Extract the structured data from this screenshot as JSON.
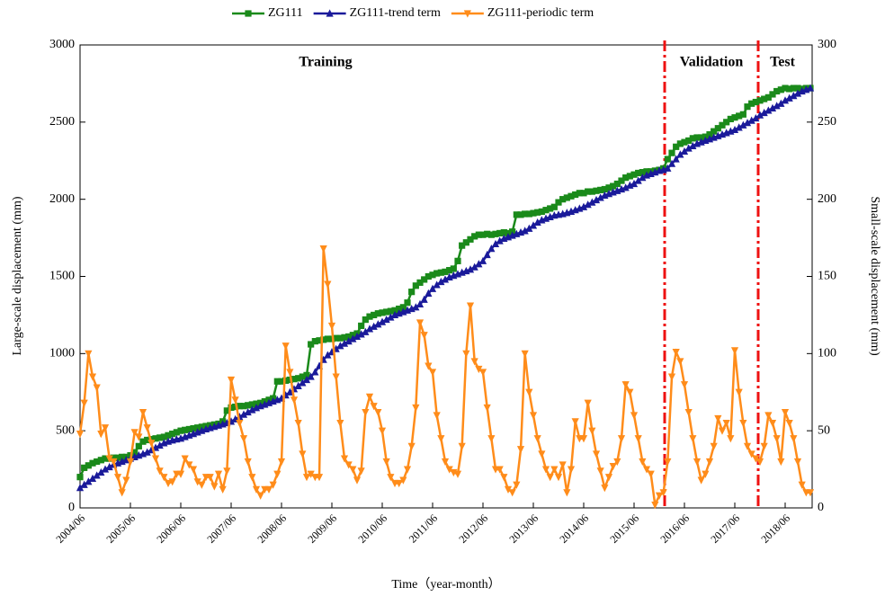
{
  "chart_data": {
    "type": "line",
    "x_label": "Time（year-month）",
    "y_label": "Large-scale displacement (mm)",
    "y2_label": "Small-scale displacement (mm)",
    "annotations": [
      "Training",
      "Validation",
      "Test"
    ],
    "categories": [
      "2004/06",
      null,
      null,
      null,
      null,
      null,
      null,
      null,
      null,
      null,
      null,
      null,
      "2005/06",
      null,
      null,
      null,
      null,
      null,
      null,
      null,
      null,
      null,
      null,
      null,
      "2006/06",
      null,
      null,
      null,
      null,
      null,
      null,
      null,
      null,
      null,
      null,
      null,
      "2007/06",
      null,
      null,
      null,
      null,
      null,
      null,
      null,
      null,
      null,
      null,
      null,
      "2008/06",
      null,
      null,
      null,
      null,
      null,
      null,
      null,
      null,
      null,
      null,
      null,
      "2009/06",
      null,
      null,
      null,
      null,
      null,
      null,
      null,
      null,
      null,
      null,
      null,
      "2010/06",
      null,
      null,
      null,
      null,
      null,
      null,
      null,
      null,
      null,
      null,
      null,
      "2011/06",
      null,
      null,
      null,
      null,
      null,
      null,
      null,
      null,
      null,
      null,
      null,
      "2012/06",
      null,
      null,
      null,
      null,
      null,
      null,
      null,
      null,
      null,
      null,
      null,
      "2013/06",
      null,
      null,
      null,
      null,
      null,
      null,
      null,
      null,
      null,
      null,
      null,
      "2014/06",
      null,
      null,
      null,
      null,
      null,
      null,
      null,
      null,
      null,
      null,
      null,
      "2015/06",
      null,
      null,
      null,
      null,
      null,
      null,
      null,
      null,
      null,
      null,
      null,
      "2016/06",
      null,
      null,
      null,
      null,
      null,
      null,
      null,
      null,
      null,
      null,
      null,
      "2017/06",
      null,
      null,
      null,
      null,
      null,
      null,
      null,
      null,
      null,
      null,
      null,
      "2018/06",
      null,
      null,
      null,
      null,
      null,
      null
    ],
    "series": [
      {
        "name": "ZG111",
        "color": "#1a8a1a",
        "marker": "square",
        "values": [
          200,
          260,
          275,
          290,
          300,
          310,
          320,
          320,
          325,
          325,
          330,
          330,
          340,
          360,
          400,
          430,
          440,
          445,
          450,
          455,
          460,
          470,
          480,
          490,
          500,
          505,
          510,
          515,
          520,
          525,
          530,
          535,
          540,
          545,
          560,
          630,
          650,
          655,
          660,
          660,
          665,
          670,
          675,
          680,
          690,
          700,
          710,
          820,
          820,
          825,
          830,
          835,
          840,
          850,
          860,
          1060,
          1080,
          1085,
          1090,
          1095,
          1095,
          1100,
          1100,
          1105,
          1110,
          1120,
          1130,
          1180,
          1220,
          1240,
          1250,
          1260,
          1265,
          1270,
          1275,
          1280,
          1290,
          1300,
          1330,
          1400,
          1440,
          1460,
          1480,
          1500,
          1510,
          1520,
          1525,
          1530,
          1540,
          1550,
          1600,
          1700,
          1720,
          1740,
          1760,
          1770,
          1770,
          1775,
          1770,
          1775,
          1780,
          1785,
          1780,
          1790,
          1900,
          1900,
          1905,
          1905,
          1910,
          1915,
          1920,
          1930,
          1940,
          1950,
          1980,
          2000,
          2010,
          2020,
          2030,
          2040,
          2040,
          2050,
          2050,
          2055,
          2060,
          2065,
          2075,
          2085,
          2100,
          2120,
          2140,
          2150,
          2160,
          2170,
          2175,
          2180,
          2180,
          2185,
          2190,
          2200,
          2260,
          2300,
          2340,
          2360,
          2370,
          2380,
          2395,
          2400,
          2400,
          2405,
          2420,
          2440,
          2460,
          2480,
          2500,
          2520,
          2530,
          2540,
          2550,
          2600,
          2620,
          2630,
          2640,
          2650,
          2660,
          2680,
          2700,
          2710,
          2720,
          2715,
          2720,
          2720,
          2715,
          2720,
          2720
        ]
      },
      {
        "name": "ZG111-trend term",
        "color": "#1a1a9a",
        "marker": "triangle-up",
        "values": [
          130,
          150,
          170,
          190,
          210,
          230,
          250,
          265,
          280,
          290,
          300,
          310,
          320,
          330,
          340,
          350,
          360,
          375,
          390,
          405,
          420,
          430,
          438,
          445,
          450,
          460,
          470,
          480,
          490,
          500,
          510,
          518,
          526,
          534,
          542,
          550,
          560,
          575,
          590,
          605,
          620,
          635,
          648,
          660,
          670,
          680,
          690,
          700,
          710,
          730,
          750,
          770,
          790,
          810,
          830,
          850,
          880,
          920,
          960,
          990,
          1010,
          1030,
          1050,
          1065,
          1080,
          1095,
          1110,
          1125,
          1140,
          1160,
          1175,
          1190,
          1205,
          1220,
          1235,
          1250,
          1260,
          1270,
          1280,
          1290,
          1300,
          1320,
          1350,
          1390,
          1420,
          1445,
          1465,
          1480,
          1495,
          1505,
          1515,
          1525,
          1535,
          1545,
          1560,
          1580,
          1600,
          1640,
          1680,
          1710,
          1730,
          1745,
          1755,
          1765,
          1775,
          1785,
          1795,
          1810,
          1830,
          1850,
          1865,
          1875,
          1885,
          1895,
          1900,
          1905,
          1912,
          1920,
          1930,
          1940,
          1950,
          1965,
          1980,
          1995,
          2010,
          2025,
          2035,
          2045,
          2055,
          2065,
          2075,
          2090,
          2100,
          2120,
          2140,
          2155,
          2165,
          2175,
          2185,
          2190,
          2200,
          2230,
          2260,
          2290,
          2310,
          2330,
          2345,
          2360,
          2370,
          2380,
          2390,
          2400,
          2410,
          2420,
          2430,
          2440,
          2450,
          2465,
          2480,
          2495,
          2510,
          2525,
          2545,
          2560,
          2575,
          2590,
          2605,
          2620,
          2640,
          2655,
          2670,
          2685,
          2700,
          2710,
          2720
        ]
      },
      {
        "name": "ZG111-periodic term",
        "color": "#ff8c1a",
        "marker": "triangle-down",
        "axis": "y2",
        "values": [
          48,
          68,
          100,
          85,
          78,
          48,
          52,
          32,
          30,
          20,
          10,
          18,
          30,
          49,
          46,
          62,
          52,
          42,
          32,
          24,
          20,
          16,
          17,
          22,
          22,
          32,
          28,
          25,
          17,
          15,
          20,
          20,
          14,
          22,
          12,
          24,
          83,
          70,
          55,
          45,
          30,
          20,
          12,
          8,
          12,
          12,
          15,
          22,
          30,
          105,
          88,
          70,
          55,
          35,
          20,
          22,
          20,
          20,
          168,
          145,
          118,
          85,
          55,
          32,
          28,
          25,
          18,
          24,
          62,
          72,
          66,
          62,
          50,
          30,
          20,
          16,
          16,
          18,
          25,
          40,
          65,
          120,
          112,
          92,
          88,
          60,
          45,
          30,
          25,
          23,
          22,
          40,
          100,
          131,
          95,
          90,
          88,
          65,
          45,
          25,
          25,
          20,
          12,
          10,
          15,
          38,
          100,
          75,
          60,
          45,
          35,
          25,
          20,
          25,
          20,
          28,
          10,
          25,
          56,
          45,
          45,
          68,
          50,
          35,
          24,
          13,
          20,
          27,
          30,
          45,
          80,
          75,
          60,
          45,
          30,
          25,
          22,
          2,
          8,
          10,
          30,
          85,
          101,
          95,
          80,
          62,
          45,
          30,
          18,
          22,
          30,
          40,
          58,
          50,
          55,
          45,
          102,
          75,
          55,
          40,
          35,
          32,
          30,
          40,
          60,
          55,
          45,
          30,
          62,
          55,
          45,
          30,
          15,
          10,
          10
        ]
      }
    ],
    "ylim": [
      0,
      3000
    ],
    "yticks": [
      0,
      500,
      1000,
      1500,
      2000,
      2500,
      3000
    ],
    "y2lim": [
      0,
      300
    ],
    "y2ticks": [
      0,
      50,
      100,
      150,
      200,
      250,
      300
    ]
  }
}
